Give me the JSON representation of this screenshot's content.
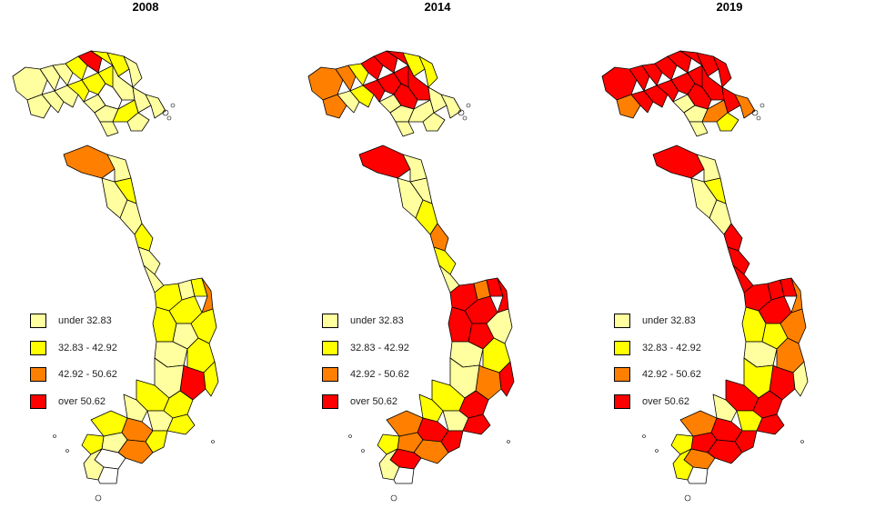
{
  "legend": {
    "classes": [
      {
        "label": "under 32.83",
        "color": "#ffffa0"
      },
      {
        "label": "32.83 - 42.92",
        "color": "#ffff00"
      },
      {
        "label": "42.92 - 50.62",
        "color": "#ff8000"
      },
      {
        "label": "over 50.62",
        "color": "#ff0000"
      }
    ]
  },
  "panels": [
    {
      "year": "2008",
      "class_counts": {
        "under 32.83": 30,
        "32.83 - 42.92": 22,
        "42.92 - 50.62": 4,
        "over 50.62": 2
      }
    },
    {
      "year": "2014",
      "class_counts": {
        "under 32.83": 18,
        "32.83 - 42.92": 16,
        "42.92 - 50.62": 10,
        "over 50.62": 19
      }
    },
    {
      "year": "2019",
      "class_counts": {
        "under 32.83": 17,
        "32.83 - 42.92": 12,
        "42.92 - 50.62": 8,
        "over 50.62": 26
      }
    }
  ]
}
